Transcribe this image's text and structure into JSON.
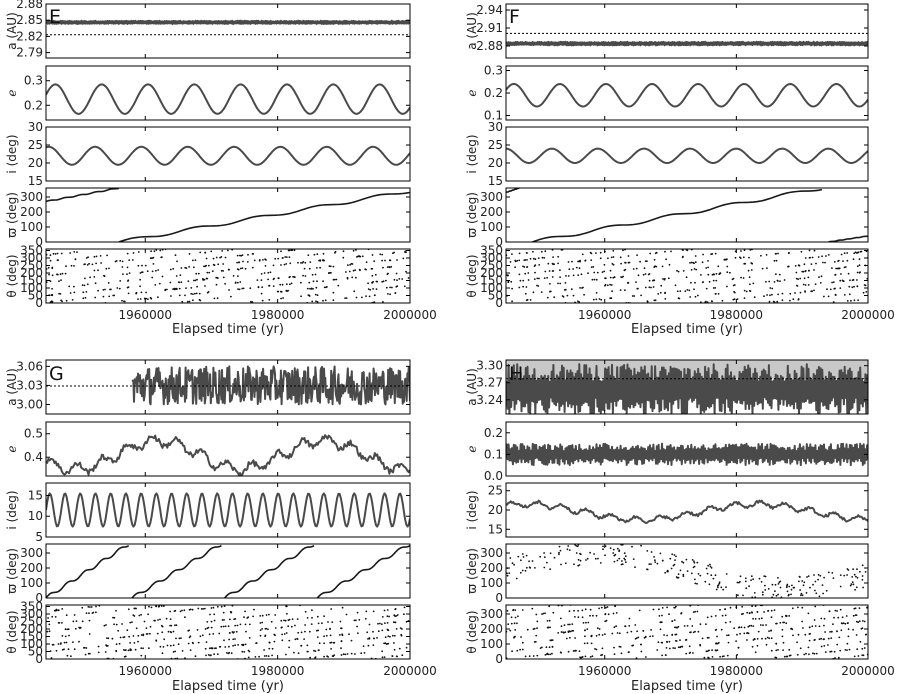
{
  "chart_data": [
    {
      "panel": "E",
      "type": "line",
      "xlabel": "Elapsed time (yr)",
      "xlim": [
        1945000,
        2000000
      ],
      "xticks": [
        "1960000",
        "1980000",
        "2000000"
      ],
      "subplots": [
        {
          "key": "a",
          "ylabel": "a (AU)",
          "ylim": [
            2.78,
            2.88
          ],
          "yticks": [
            "2.79",
            "2.82",
            "2.85",
            "2.88"
          ],
          "ref_line": 2.823,
          "series": {
            "mean": 2.846,
            "amplitude": 0.003,
            "trend": 0.0,
            "style": "band"
          }
        },
        {
          "key": "e",
          "ylabel": "e",
          "ylim": [
            0.14,
            0.36
          ],
          "yticks": [
            "0.2",
            "0.3"
          ],
          "series": {
            "mean": 0.225,
            "amplitude": 0.06,
            "period": 7000,
            "phase": 0.3,
            "style": "wave"
          }
        },
        {
          "key": "i",
          "ylabel": "i (deg)",
          "ylim": [
            15,
            30
          ],
          "yticks": [
            "15",
            "20",
            "25",
            "30"
          ],
          "series": {
            "mean": 22,
            "amplitude": 2.5,
            "period": 7000,
            "phase": 1.2,
            "style": "wave"
          }
        },
        {
          "key": "varpi",
          "ylabel": "ϖ (deg)",
          "ylim": [
            0,
            360
          ],
          "yticks": [
            "0",
            "100",
            "200",
            "300"
          ],
          "series": {
            "style": "sawtooth",
            "segments": [
              [
                1945000,
                270,
                1956000,
                360
              ],
              [
                1956000,
                0,
                2000000,
                340
              ]
            ]
          }
        },
        {
          "key": "theta",
          "ylabel": "θ (deg)",
          "ylim": [
            0,
            360
          ],
          "yticks": [
            "0",
            "50",
            "100",
            "150",
            "200",
            "250",
            "300",
            "350"
          ],
          "series": {
            "style": "scatter"
          }
        }
      ]
    },
    {
      "panel": "F",
      "type": "line",
      "xlabel": "Elapsed time (yr)",
      "xlim": [
        1945000,
        2000000
      ],
      "xticks": [
        "1960000",
        "1980000",
        "2000000"
      ],
      "subplots": [
        {
          "key": "a",
          "ylabel": "a (AU)",
          "ylim": [
            2.86,
            2.95
          ],
          "yticks": [
            "2.88",
            "2.91",
            "2.94"
          ],
          "ref_line": 2.901,
          "series": {
            "mean": 2.884,
            "amplitude": 0.003,
            "style": "band"
          }
        },
        {
          "key": "e",
          "ylabel": "e",
          "ylim": [
            0.08,
            0.32
          ],
          "yticks": [
            "0.1",
            "0.2",
            "0.3"
          ],
          "series": {
            "mean": 0.19,
            "amplitude": 0.05,
            "period": 7000,
            "phase": 0.5,
            "style": "wave"
          }
        },
        {
          "key": "i",
          "ylabel": "i (deg)",
          "ylim": [
            15,
            30
          ],
          "yticks": [
            "15",
            "20",
            "25",
            "30"
          ],
          "series": {
            "mean": 22,
            "amplitude": 2,
            "period": 7000,
            "phase": 1.6,
            "style": "wave"
          }
        },
        {
          "key": "varpi",
          "ylabel": "ϖ (deg)",
          "ylim": [
            0,
            360
          ],
          "yticks": [
            "0",
            "100",
            "200",
            "300"
          ],
          "series": {
            "style": "sawtooth",
            "segments": [
              [
                1945000,
                330,
                1947000,
                360
              ],
              [
                1949000,
                0,
                1993000,
                360
              ],
              [
                1994000,
                0,
                2000000,
                40
              ]
            ]
          }
        },
        {
          "key": "theta",
          "ylabel": "θ (deg)",
          "ylim": [
            0,
            360
          ],
          "yticks": [
            "0",
            "50",
            "100",
            "150",
            "200",
            "250",
            "300",
            "350"
          ],
          "series": {
            "style": "scatter"
          }
        }
      ]
    },
    {
      "panel": "G",
      "type": "line",
      "xlabel": "Elapsed time (yr)",
      "xlim": [
        1945000,
        2000000
      ],
      "xticks": [
        "1960000",
        "1980000",
        "2000000"
      ],
      "subplots": [
        {
          "key": "a",
          "ylabel": "a (AU)",
          "ylim": [
            2.985,
            3.07
          ],
          "yticks": [
            "3.00",
            "3.03",
            "3.06"
          ],
          "ref_line": 3.029,
          "series": {
            "mean": 3.03,
            "amplitude": 0.03,
            "style": "noisy",
            "start": 1958000
          }
        },
        {
          "key": "e",
          "ylabel": "e",
          "ylim": [
            0.32,
            0.55
          ],
          "yticks": [
            "0.4",
            "0.5"
          ],
          "series": {
            "mean": 0.41,
            "amplitude": 0.06,
            "period": 25000,
            "phase": 3.6,
            "style": "wave-noisy"
          }
        },
        {
          "key": "i",
          "ylabel": "i (deg)",
          "ylim": [
            5,
            18
          ],
          "yticks": [
            "5",
            "10",
            "15"
          ],
          "series": {
            "mean": 11.5,
            "amplitude": 4,
            "period": 2300,
            "phase": 0,
            "style": "wave"
          }
        },
        {
          "key": "varpi",
          "ylabel": "ϖ (deg)",
          "ylim": [
            0,
            360
          ],
          "yticks": [
            "0",
            "100",
            "200",
            "300"
          ],
          "series": {
            "style": "sawtooth",
            "segments": [
              [
                1945000,
                0,
                1957500,
                360
              ],
              [
                1958000,
                0,
                1971500,
                360
              ],
              [
                1972000,
                0,
                1985500,
                360
              ],
              [
                1986000,
                0,
                2000000,
                360
              ]
            ]
          }
        },
        {
          "key": "theta",
          "ylabel": "θ (deg)",
          "ylim": [
            0,
            360
          ],
          "yticks": [
            "0",
            "50",
            "100",
            "150",
            "200",
            "250",
            "300",
            "350"
          ],
          "series": {
            "style": "scatter"
          }
        }
      ]
    },
    {
      "panel": "H",
      "type": "line",
      "xlabel": "Elapsed time (yr)",
      "xlim": [
        1945000,
        2000000
      ],
      "xticks": [
        "1960000",
        "1980000",
        "2000000"
      ],
      "subplots": [
        {
          "key": "a",
          "ylabel": "a (AU)",
          "ylim": [
            3.215,
            3.31
          ],
          "yticks": [
            "3.24",
            "3.27",
            "3.30"
          ],
          "ref_line": 3.277,
          "shade_above": 3.277,
          "series": {
            "mean": 3.258,
            "amplitude": 0.045,
            "style": "oscillating"
          }
        },
        {
          "key": "e",
          "ylabel": "e",
          "ylim": [
            0,
            0.25
          ],
          "yticks": [
            "0.0",
            "0.1",
            "0.2"
          ],
          "series": {
            "mean": 0.1,
            "amplitude": 0.05,
            "style": "oscillating"
          }
        },
        {
          "key": "i",
          "ylabel": "i (deg)",
          "ylim": [
            13,
            27
          ],
          "yticks": [
            "15",
            "20",
            "25"
          ],
          "series": {
            "mean": 19.5,
            "amplitude": 2,
            "period": 35000,
            "phase": 1.0,
            "style": "wave-noisy"
          }
        },
        {
          "key": "varpi",
          "ylabel": "ϖ (deg)",
          "ylim": [
            0,
            360
          ],
          "yticks": [
            "0",
            "100",
            "200",
            "300"
          ],
          "series": {
            "style": "scatter-wave"
          }
        },
        {
          "key": "theta",
          "ylabel": "θ (deg)",
          "ylim": [
            0,
            360
          ],
          "yticks": [
            "0",
            "100",
            "200",
            "300"
          ],
          "series": {
            "style": "scatter"
          }
        }
      ]
    }
  ]
}
